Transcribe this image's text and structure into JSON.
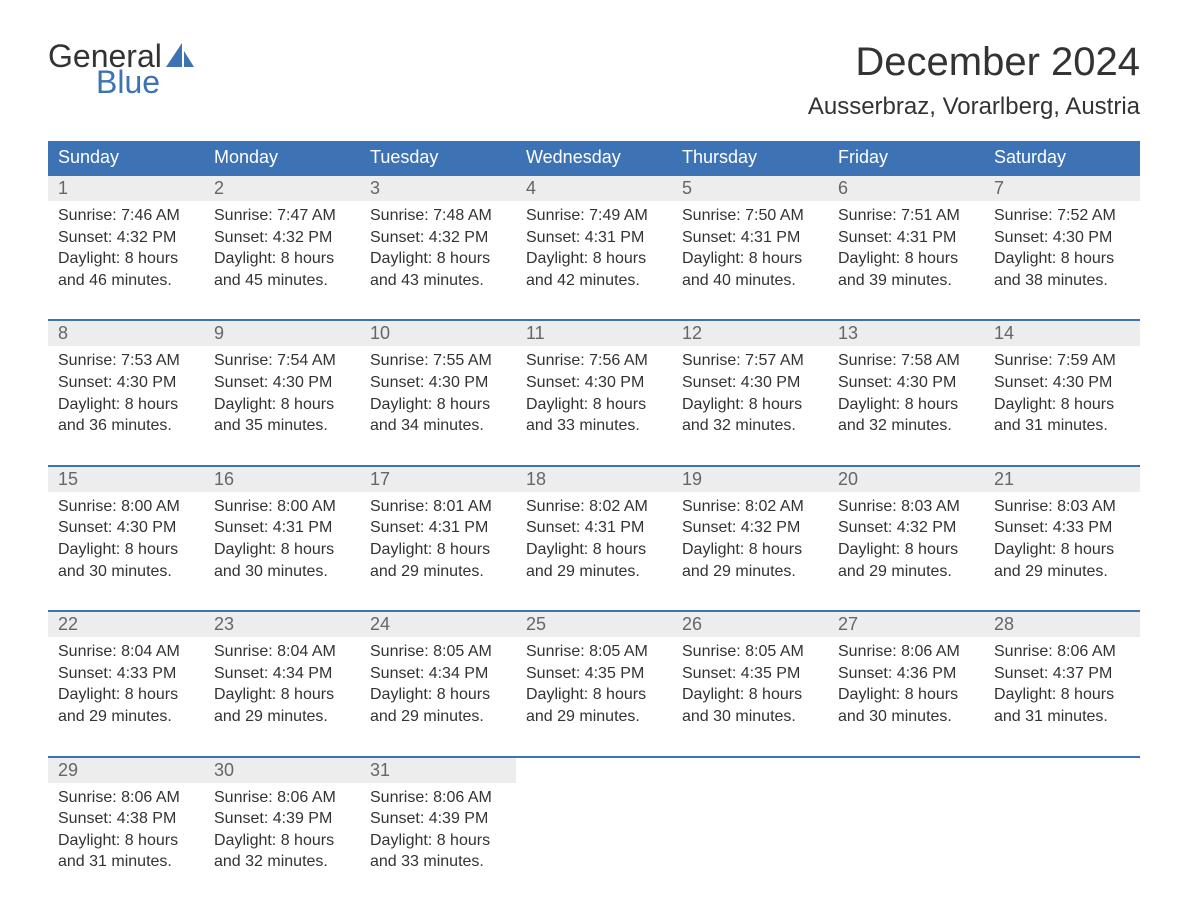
{
  "brand": {
    "word1": "General",
    "word2": "Blue",
    "brand_color": "#3d72b4"
  },
  "title": "December 2024",
  "location": "Ausserbraz, Vorarlberg, Austria",
  "header_bg": "#3d72b4",
  "daynum_bg": "#ededed",
  "columns": [
    "Sunday",
    "Monday",
    "Tuesday",
    "Wednesday",
    "Thursday",
    "Friday",
    "Saturday"
  ],
  "weeks": [
    [
      {
        "day": "1",
        "sunrise": "7:46 AM",
        "sunset": "4:32 PM",
        "dl1": "Daylight: 8 hours",
        "dl2": "and 46 minutes."
      },
      {
        "day": "2",
        "sunrise": "7:47 AM",
        "sunset": "4:32 PM",
        "dl1": "Daylight: 8 hours",
        "dl2": "and 45 minutes."
      },
      {
        "day": "3",
        "sunrise": "7:48 AM",
        "sunset": "4:32 PM",
        "dl1": "Daylight: 8 hours",
        "dl2": "and 43 minutes."
      },
      {
        "day": "4",
        "sunrise": "7:49 AM",
        "sunset": "4:31 PM",
        "dl1": "Daylight: 8 hours",
        "dl2": "and 42 minutes."
      },
      {
        "day": "5",
        "sunrise": "7:50 AM",
        "sunset": "4:31 PM",
        "dl1": "Daylight: 8 hours",
        "dl2": "and 40 minutes."
      },
      {
        "day": "6",
        "sunrise": "7:51 AM",
        "sunset": "4:31 PM",
        "dl1": "Daylight: 8 hours",
        "dl2": "and 39 minutes."
      },
      {
        "day": "7",
        "sunrise": "7:52 AM",
        "sunset": "4:30 PM",
        "dl1": "Daylight: 8 hours",
        "dl2": "and 38 minutes."
      }
    ],
    [
      {
        "day": "8",
        "sunrise": "7:53 AM",
        "sunset": "4:30 PM",
        "dl1": "Daylight: 8 hours",
        "dl2": "and 36 minutes."
      },
      {
        "day": "9",
        "sunrise": "7:54 AM",
        "sunset": "4:30 PM",
        "dl1": "Daylight: 8 hours",
        "dl2": "and 35 minutes."
      },
      {
        "day": "10",
        "sunrise": "7:55 AM",
        "sunset": "4:30 PM",
        "dl1": "Daylight: 8 hours",
        "dl2": "and 34 minutes."
      },
      {
        "day": "11",
        "sunrise": "7:56 AM",
        "sunset": "4:30 PM",
        "dl1": "Daylight: 8 hours",
        "dl2": "and 33 minutes."
      },
      {
        "day": "12",
        "sunrise": "7:57 AM",
        "sunset": "4:30 PM",
        "dl1": "Daylight: 8 hours",
        "dl2": "and 32 minutes."
      },
      {
        "day": "13",
        "sunrise": "7:58 AM",
        "sunset": "4:30 PM",
        "dl1": "Daylight: 8 hours",
        "dl2": "and 32 minutes."
      },
      {
        "day": "14",
        "sunrise": "7:59 AM",
        "sunset": "4:30 PM",
        "dl1": "Daylight: 8 hours",
        "dl2": "and 31 minutes."
      }
    ],
    [
      {
        "day": "15",
        "sunrise": "8:00 AM",
        "sunset": "4:30 PM",
        "dl1": "Daylight: 8 hours",
        "dl2": "and 30 minutes."
      },
      {
        "day": "16",
        "sunrise": "8:00 AM",
        "sunset": "4:31 PM",
        "dl1": "Daylight: 8 hours",
        "dl2": "and 30 minutes."
      },
      {
        "day": "17",
        "sunrise": "8:01 AM",
        "sunset": "4:31 PM",
        "dl1": "Daylight: 8 hours",
        "dl2": "and 29 minutes."
      },
      {
        "day": "18",
        "sunrise": "8:02 AM",
        "sunset": "4:31 PM",
        "dl1": "Daylight: 8 hours",
        "dl2": "and 29 minutes."
      },
      {
        "day": "19",
        "sunrise": "8:02 AM",
        "sunset": "4:32 PM",
        "dl1": "Daylight: 8 hours",
        "dl2": "and 29 minutes."
      },
      {
        "day": "20",
        "sunrise": "8:03 AM",
        "sunset": "4:32 PM",
        "dl1": "Daylight: 8 hours",
        "dl2": "and 29 minutes."
      },
      {
        "day": "21",
        "sunrise": "8:03 AM",
        "sunset": "4:33 PM",
        "dl1": "Daylight: 8 hours",
        "dl2": "and 29 minutes."
      }
    ],
    [
      {
        "day": "22",
        "sunrise": "8:04 AM",
        "sunset": "4:33 PM",
        "dl1": "Daylight: 8 hours",
        "dl2": "and 29 minutes."
      },
      {
        "day": "23",
        "sunrise": "8:04 AM",
        "sunset": "4:34 PM",
        "dl1": "Daylight: 8 hours",
        "dl2": "and 29 minutes."
      },
      {
        "day": "24",
        "sunrise": "8:05 AM",
        "sunset": "4:34 PM",
        "dl1": "Daylight: 8 hours",
        "dl2": "and 29 minutes."
      },
      {
        "day": "25",
        "sunrise": "8:05 AM",
        "sunset": "4:35 PM",
        "dl1": "Daylight: 8 hours",
        "dl2": "and 29 minutes."
      },
      {
        "day": "26",
        "sunrise": "8:05 AM",
        "sunset": "4:35 PM",
        "dl1": "Daylight: 8 hours",
        "dl2": "and 30 minutes."
      },
      {
        "day": "27",
        "sunrise": "8:06 AM",
        "sunset": "4:36 PM",
        "dl1": "Daylight: 8 hours",
        "dl2": "and 30 minutes."
      },
      {
        "day": "28",
        "sunrise": "8:06 AM",
        "sunset": "4:37 PM",
        "dl1": "Daylight: 8 hours",
        "dl2": "and 31 minutes."
      }
    ],
    [
      {
        "day": "29",
        "sunrise": "8:06 AM",
        "sunset": "4:38 PM",
        "dl1": "Daylight: 8 hours",
        "dl2": "and 31 minutes."
      },
      {
        "day": "30",
        "sunrise": "8:06 AM",
        "sunset": "4:39 PM",
        "dl1": "Daylight: 8 hours",
        "dl2": "and 32 minutes."
      },
      {
        "day": "31",
        "sunrise": "8:06 AM",
        "sunset": "4:39 PM",
        "dl1": "Daylight: 8 hours",
        "dl2": "and 33 minutes."
      },
      null,
      null,
      null,
      null
    ]
  ],
  "labels": {
    "sunrise": "Sunrise: ",
    "sunset": "Sunset: "
  }
}
